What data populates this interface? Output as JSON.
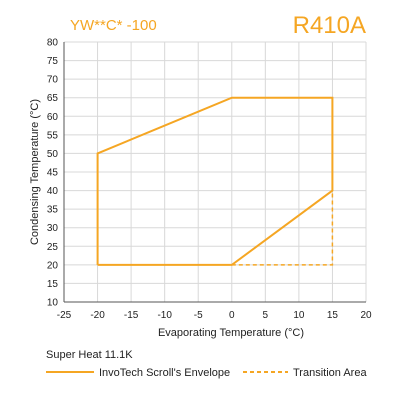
{
  "header": {
    "model": "YW**C* -100",
    "refrigerant": "R410A"
  },
  "footer": {
    "super_heat": "Super Heat 11.1K"
  },
  "colors": {
    "accent": "#f5a623",
    "grid": "#d8d8d8",
    "axis": "#555555"
  },
  "chart_data": {
    "type": "line",
    "title": "",
    "xlabel": "Evaporating Temperature (°C)",
    "ylabel": "Condensing Temperature (°C)",
    "xlim": [
      -25,
      20
    ],
    "ylim": [
      10,
      80
    ],
    "xticks": [
      -25,
      -20,
      -15,
      -10,
      -5,
      0,
      5,
      10,
      15,
      20
    ],
    "yticks": [
      10,
      15,
      20,
      25,
      30,
      35,
      40,
      45,
      50,
      55,
      60,
      65,
      70,
      75,
      80
    ],
    "grid": true,
    "legend_position": "bottom",
    "series": [
      {
        "name": "InvoTech Scroll's Envelope",
        "style": "solid",
        "points": [
          [
            -20,
            20
          ],
          [
            -20,
            50
          ],
          [
            0,
            65
          ],
          [
            15,
            65
          ],
          [
            15,
            40
          ],
          [
            0,
            20
          ],
          [
            -20,
            20
          ]
        ]
      },
      {
        "name": "Transition Area",
        "style": "dashed",
        "points": [
          [
            0,
            20
          ],
          [
            15,
            20
          ],
          [
            15,
            40
          ]
        ]
      }
    ]
  }
}
